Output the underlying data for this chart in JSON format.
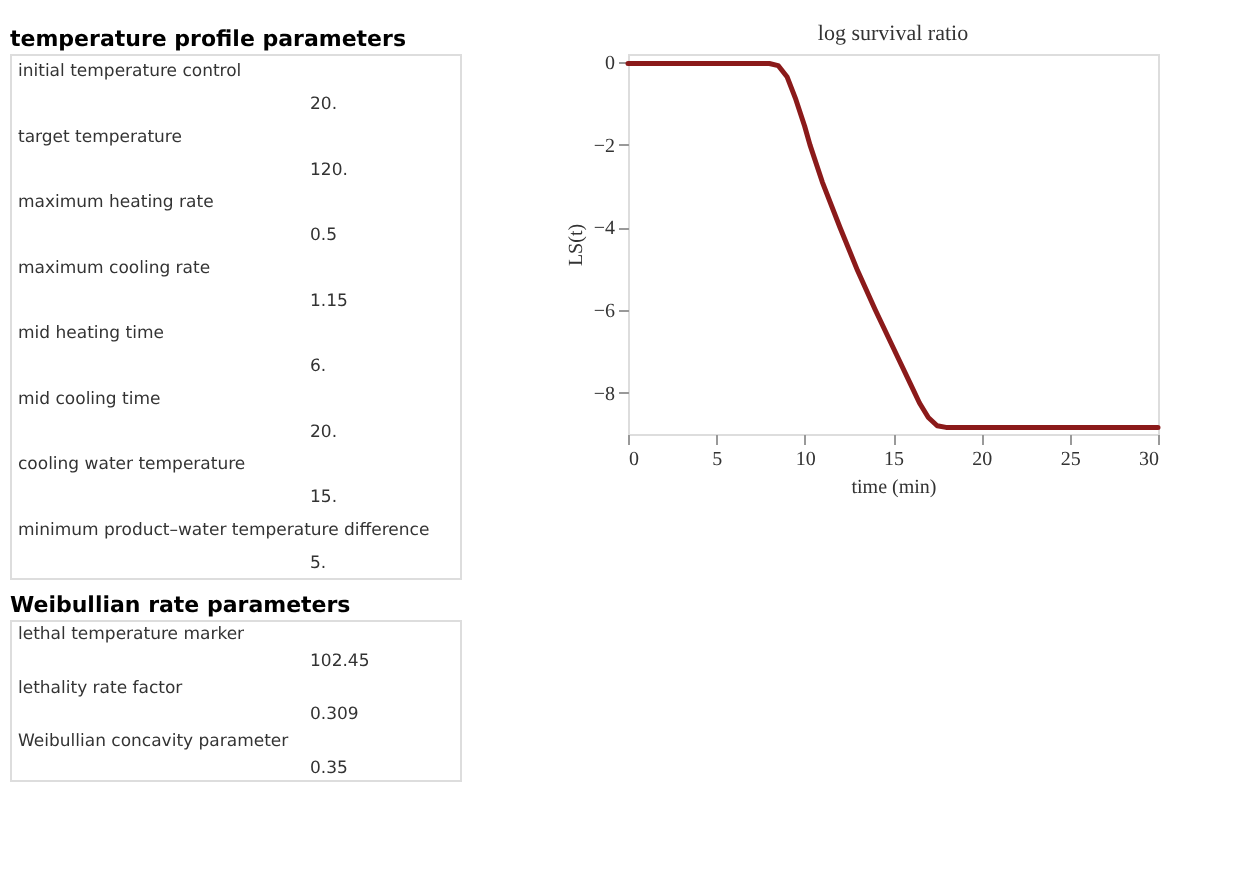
{
  "chart_data": [
    {
      "type": "other",
      "title": "temperature profile parameters",
      "annotations": [
        "initial temperature control",
        "20.",
        "target temperature",
        "120.",
        "maximum heating rate",
        "0.5",
        "maximum cooling rate",
        "1.15",
        "mid heating time",
        "6.",
        "mid cooling time",
        "20.",
        "cooling water temperature",
        "15.",
        "minimum product–water temperature difference",
        "5."
      ]
    },
    {
      "type": "other",
      "title": "Weibullian rate parameters",
      "annotations": [
        "lethal temperature marker",
        "102.45",
        "lethality rate factor",
        "0.309",
        "Weibullian concavity parameter",
        "0.35"
      ]
    },
    {
      "type": "line",
      "title": "log survival ratio",
      "xlabel": "time (min)",
      "ylabel": "LS(t)",
      "x": [
        0,
        8,
        8.5,
        9,
        9.5,
        10,
        10.3,
        11,
        12,
        13,
        14,
        15,
        16,
        16.5,
        17,
        17.5,
        18,
        30
      ],
      "series": [
        {
          "color": "#8b1a1a",
          "values": [
            -0.03,
            -0.03,
            -0.08,
            -0.35,
            -0.9,
            -1.55,
            -2,
            -2.9,
            -4,
            -5.05,
            -6,
            -6.9,
            -7.8,
            -8.25,
            -8.6,
            -8.8,
            -8.84,
            -8.84
          ]
        }
      ],
      "xlim": [
        0,
        30
      ],
      "ylim": [
        -9,
        0.2
      ],
      "xticks": [
        0,
        5,
        10,
        15,
        20,
        25,
        30
      ],
      "yticks": [
        0,
        -2,
        -4,
        -6,
        -8
      ],
      "grid": false,
      "marker": "none",
      "line_style": "solid"
    }
  ]
}
